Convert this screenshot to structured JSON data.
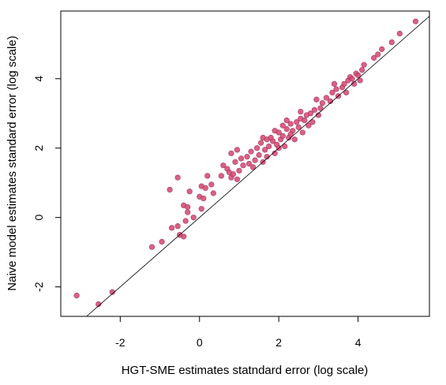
{
  "chart_data": {
    "type": "scatter",
    "title": "",
    "xlabel": "HGT-SME estimates statndard error (log scale)",
    "ylabel": "Naive model estimates standard error (log scale)",
    "xlim": [
      -3.5,
      5.8
    ],
    "ylim": [
      -2.85,
      5.95
    ],
    "x_ticks": [
      -2,
      0,
      2,
      4
    ],
    "y_ticks": [
      -2,
      0,
      2,
      4
    ],
    "x_tick_labels": [
      "-2",
      "0",
      "2",
      "4"
    ],
    "y_tick_labels": [
      "-2",
      "0",
      "2",
      "4"
    ],
    "grid": false,
    "reference_line": {
      "slope": 1,
      "intercept": 0,
      "color": "#000000"
    },
    "point_color": "#d4456b",
    "points": [
      [
        -3.1,
        -2.25
      ],
      [
        -2.55,
        -2.5
      ],
      [
        -2.2,
        -2.15
      ],
      [
        -1.2,
        -0.85
      ],
      [
        -0.95,
        -0.7
      ],
      [
        -0.7,
        -0.3
      ],
      [
        -0.55,
        -0.25
      ],
      [
        -0.4,
        -0.55
      ],
      [
        -0.5,
        -0.5
      ],
      [
        -0.35,
        -0.1
      ],
      [
        -0.3,
        0.15
      ],
      [
        -0.4,
        0.35
      ],
      [
        -0.3,
        0.3
      ],
      [
        -0.75,
        0.8
      ],
      [
        -0.55,
        1.15
      ],
      [
        -0.25,
        0.75
      ],
      [
        0.0,
        0.6
      ],
      [
        0.1,
        0.55
      ],
      [
        0.05,
        0.9
      ],
      [
        0.15,
        0.85
      ],
      [
        0.3,
        0.95
      ],
      [
        0.35,
        0.7
      ],
      [
        0.2,
        1.2
      ],
      [
        -0.15,
        0.0
      ],
      [
        0.05,
        0.25
      ],
      [
        0.55,
        1.2
      ],
      [
        0.6,
        1.5
      ],
      [
        0.7,
        1.4
      ],
      [
        0.75,
        1.3
      ],
      [
        0.8,
        1.15
      ],
      [
        0.85,
        1.25
      ],
      [
        0.9,
        1.6
      ],
      [
        0.95,
        1.1
      ],
      [
        1.0,
        1.35
      ],
      [
        0.8,
        1.85
      ],
      [
        1.05,
        1.7
      ],
      [
        1.1,
        1.5
      ],
      [
        1.2,
        1.75
      ],
      [
        1.3,
        1.9
      ],
      [
        1.35,
        1.45
      ],
      [
        1.4,
        1.65
      ],
      [
        1.45,
        2.0
      ],
      [
        1.5,
        1.8
      ],
      [
        1.55,
        2.15
      ],
      [
        1.6,
        1.6
      ],
      [
        1.65,
        1.95
      ],
      [
        1.7,
        1.75
      ],
      [
        1.75,
        2.05
      ],
      [
        1.8,
        2.3
      ],
      [
        1.85,
        2.2
      ],
      [
        1.9,
        1.85
      ],
      [
        1.95,
        2.1
      ],
      [
        2.0,
        2.45
      ],
      [
        2.05,
        2.25
      ],
      [
        2.1,
        2.35
      ],
      [
        2.1,
        2.65
      ],
      [
        2.15,
        2.05
      ],
      [
        2.2,
        2.55
      ],
      [
        2.25,
        2.3
      ],
      [
        2.3,
        2.7
      ],
      [
        2.35,
        2.5
      ],
      [
        2.4,
        2.25
      ],
      [
        2.45,
        2.75
      ],
      [
        2.5,
        2.6
      ],
      [
        2.55,
        2.85
      ],
      [
        2.6,
        2.45
      ],
      [
        2.65,
        2.8
      ],
      [
        2.7,
        2.95
      ],
      [
        2.75,
        2.65
      ],
      [
        2.8,
        3.0
      ],
      [
        2.85,
        2.75
      ],
      [
        2.9,
        3.1
      ],
      [
        2.95,
        3.4
      ],
      [
        3.0,
        2.95
      ],
      [
        3.05,
        3.15
      ],
      [
        3.1,
        3.3
      ],
      [
        3.2,
        3.45
      ],
      [
        3.3,
        3.35
      ],
      [
        3.35,
        3.6
      ],
      [
        3.45,
        3.7
      ],
      [
        3.5,
        3.5
      ],
      [
        3.6,
        3.75
      ],
      [
        3.65,
        3.85
      ],
      [
        3.7,
        3.6
      ],
      [
        3.75,
        3.95
      ],
      [
        3.8,
        4.05
      ],
      [
        3.85,
        4.0
      ],
      [
        3.9,
        3.85
      ],
      [
        3.95,
        4.15
      ],
      [
        4.0,
        4.1
      ],
      [
        4.05,
        3.95
      ],
      [
        4.1,
        4.25
      ],
      [
        4.15,
        4.4
      ],
      [
        4.4,
        4.6
      ],
      [
        4.5,
        4.7
      ],
      [
        4.6,
        4.85
      ],
      [
        4.85,
        5.05
      ],
      [
        5.05,
        5.3
      ],
      [
        5.45,
        5.65
      ],
      [
        2.0,
        2.0
      ],
      [
        1.9,
        2.5
      ],
      [
        2.2,
        2.8
      ],
      [
        1.6,
        2.3
      ],
      [
        2.55,
        3.05
      ],
      [
        3.4,
        3.85
      ],
      [
        2.3,
        2.4
      ],
      [
        1.25,
        1.55
      ],
      [
        0.95,
        1.95
      ],
      [
        1.7,
        2.25
      ]
    ]
  }
}
